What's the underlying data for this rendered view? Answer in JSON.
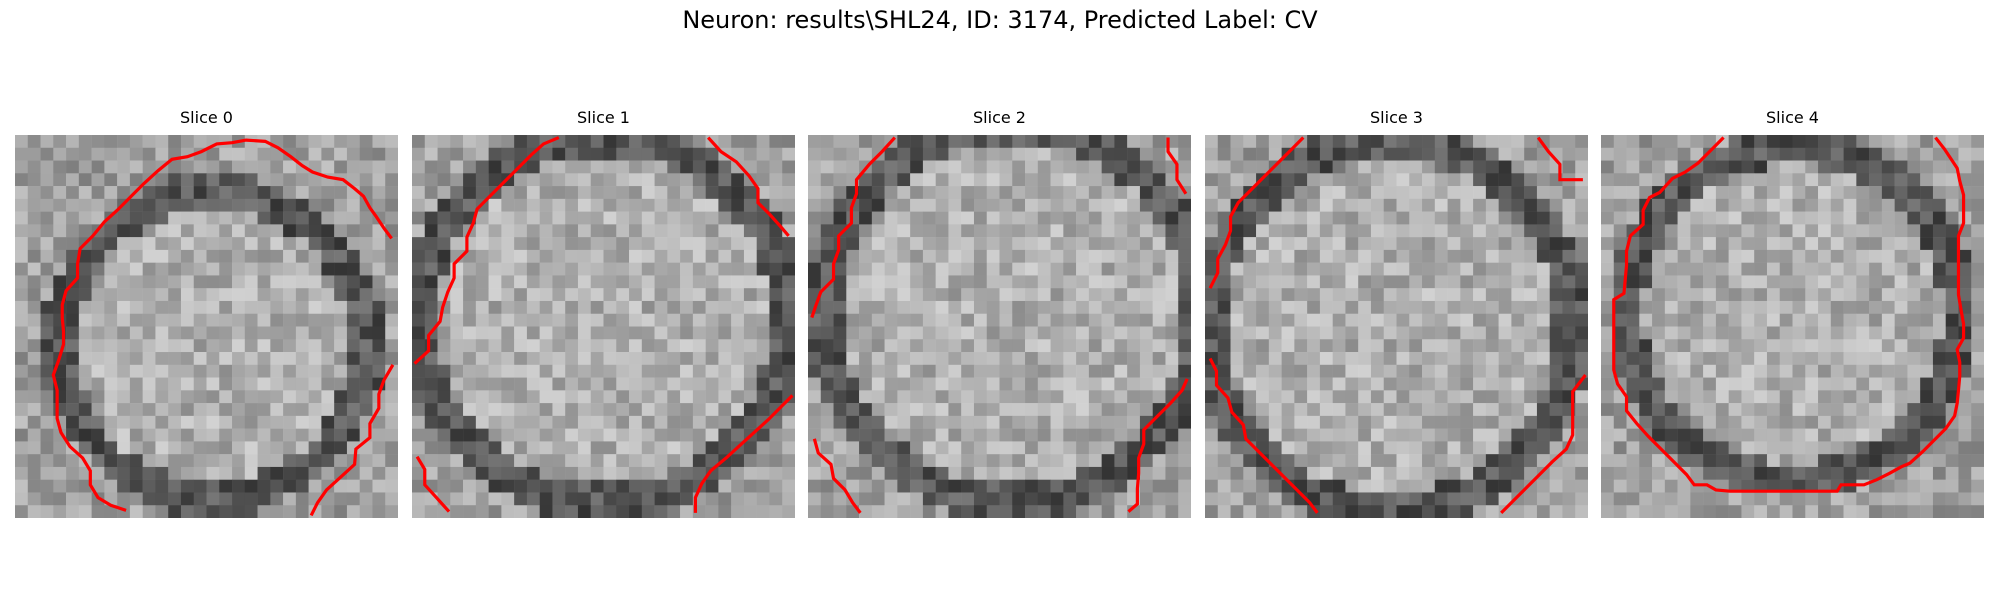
{
  "figure": {
    "title": "Neuron: results\\SHL24, ID: 3174, Predicted Label: CV"
  },
  "slices": [
    {
      "label": "Slice 0"
    },
    {
      "label": "Slice 1"
    },
    {
      "label": "Slice 2"
    },
    {
      "label": "Slice 3"
    },
    {
      "label": "Slice 4"
    }
  ],
  "colors": {
    "contour": "#ff0000",
    "background": "#ffffff"
  },
  "colormap": "gray"
}
